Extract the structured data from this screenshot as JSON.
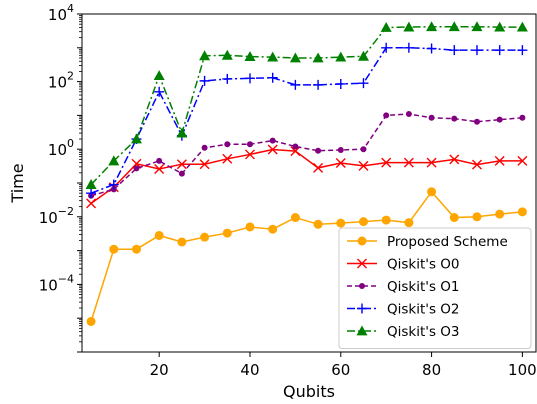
{
  "chart_data": {
    "type": "line",
    "xlabel": "Qubits",
    "ylabel": "Time",
    "xlim": [
      3,
      103
    ],
    "ylim": [
      1e-06,
      10000
    ],
    "yscale": "log",
    "xticks": [
      {
        "value": 20,
        "label": "20"
      },
      {
        "value": 40,
        "label": "40"
      },
      {
        "value": 60,
        "label": "60"
      },
      {
        "value": 80,
        "label": "80"
      },
      {
        "value": 100,
        "label": "100"
      }
    ],
    "yticks": [
      {
        "value": 0.0001,
        "base": "10",
        "exp": "−4"
      },
      {
        "value": 0.01,
        "base": "10",
        "exp": "−2"
      },
      {
        "value": 1,
        "base": "10",
        "exp": "0"
      },
      {
        "value": 100,
        "base": "10",
        "exp": "2"
      },
      {
        "value": 10000,
        "base": "10",
        "exp": "4"
      }
    ],
    "grid": false,
    "legend_position": "lower-right",
    "x": [
      5,
      10,
      15,
      20,
      25,
      30,
      35,
      40,
      45,
      50,
      55,
      60,
      65,
      70,
      75,
      80,
      85,
      90,
      95,
      100
    ],
    "series": [
      {
        "name": "Proposed Scheme",
        "color": "#FFA500",
        "marker": "circle",
        "dash": "solid",
        "values": [
          8e-06,
          0.0011,
          0.0011,
          0.0028,
          0.0018,
          0.0025,
          0.0033,
          0.005,
          0.0043,
          0.0095,
          0.006,
          0.0065,
          0.0072,
          0.008,
          0.0067,
          0.055,
          0.0095,
          0.01,
          0.012,
          0.014
        ]
      },
      {
        "name": "Qiskit's O0",
        "color": "#FF0000",
        "marker": "x",
        "dash": "solid",
        "values": [
          0.025,
          0.075,
          0.37,
          0.26,
          0.36,
          0.36,
          0.52,
          0.7,
          0.98,
          0.88,
          0.28,
          0.39,
          0.32,
          0.4,
          0.4,
          0.4,
          0.5,
          0.35,
          0.45,
          0.45
        ]
      },
      {
        "name": "Qiskit's O1",
        "color": "#800080",
        "marker": "dot",
        "dash": "dashed",
        "values": [
          0.042,
          0.065,
          0.27,
          0.45,
          0.19,
          1.1,
          1.4,
          1.4,
          1.8,
          1.2,
          0.9,
          0.95,
          1.0,
          10,
          11,
          8.5,
          8,
          6.5,
          7.5,
          8.5
        ]
      },
      {
        "name": "Qiskit's O2",
        "color": "#0000FF",
        "marker": "plus",
        "dash": "dashdot",
        "values": [
          0.05,
          0.09,
          2.0,
          50,
          2.5,
          105,
          120,
          125,
          130,
          80,
          80,
          85,
          90,
          1000,
          1000,
          950,
          850,
          850,
          850,
          850
        ]
      },
      {
        "name": "Qiskit's O3",
        "color": "#008000",
        "marker": "triangle",
        "dash": "dashdot",
        "values": [
          0.09,
          0.45,
          2.0,
          150,
          3.0,
          580,
          600,
          550,
          530,
          500,
          500,
          530,
          560,
          4000,
          4100,
          4200,
          4200,
          4200,
          4100,
          4100
        ]
      }
    ]
  }
}
